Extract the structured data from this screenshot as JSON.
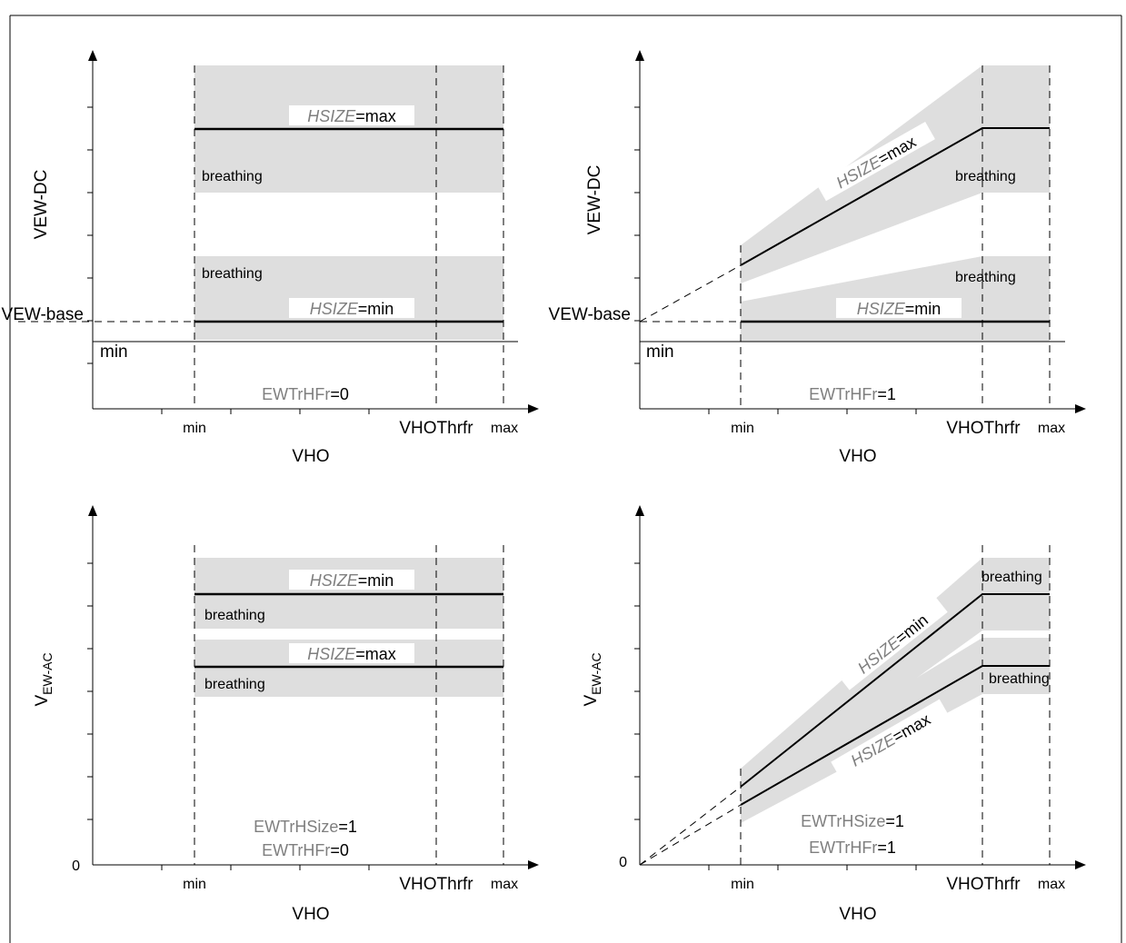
{
  "colors": {
    "band": "#dedede",
    "line": "#000000",
    "gray_text": "#7f7f7f",
    "frame": "#000000"
  },
  "panels": [
    {
      "id": "tl",
      "ylabel": "VEW-DC",
      "ylabel_sub": "",
      "ybase_label": "VEW-base",
      "ymin_label": "min",
      "zero_label": "",
      "x_ticks": {
        "min": "min",
        "thr": "VHOThrfr",
        "max": "max"
      },
      "xlabel": "VHO",
      "params": [
        {
          "name": "EWTrHFr",
          "value": "=0"
        }
      ],
      "curves": [
        {
          "prefix": "HSIZE",
          "suffix": "=max",
          "breathing": "breathing"
        },
        {
          "prefix": "HSIZE",
          "suffix": "=min",
          "breathing": "breathing"
        }
      ]
    },
    {
      "id": "tr",
      "ylabel": "VEW-DC",
      "ylabel_sub": "",
      "ybase_label": "VEW-base",
      "ymin_label": "min",
      "zero_label": "",
      "x_ticks": {
        "min": "min",
        "thr": "VHOThrfr",
        "max": "max"
      },
      "xlabel": "VHO",
      "params": [
        {
          "name": "EWTrHFr",
          "value": "=1"
        }
      ],
      "curves": [
        {
          "prefix": "HSIZE",
          "suffix": "=max",
          "breathing": "breathing"
        },
        {
          "prefix": "HSIZE",
          "suffix": "=min",
          "breathing": "breathing"
        }
      ]
    },
    {
      "id": "bl",
      "ylabel": "V",
      "ylabel_sub": "EW-AC",
      "ybase_label": "",
      "ymin_label": "",
      "zero_label": "0",
      "x_ticks": {
        "min": "min",
        "thr": "VHOThrfr",
        "max": "max"
      },
      "xlabel": "VHO",
      "params": [
        {
          "name": "EWTrHSize",
          "value": "=1"
        },
        {
          "name": "EWTrHFr",
          "value": "=0"
        }
      ],
      "curves": [
        {
          "prefix": "HSIZE",
          "suffix": "=min",
          "breathing": "breathing"
        },
        {
          "prefix": "HSIZE",
          "suffix": "=max",
          "breathing": "breathing"
        }
      ]
    },
    {
      "id": "br",
      "ylabel": "V",
      "ylabel_sub": "EW-AC",
      "ybase_label": "",
      "ymin_label": "",
      "zero_label": "0",
      "x_ticks": {
        "min": "min",
        "thr": "VHOThrfr",
        "max": "max"
      },
      "xlabel": "VHO",
      "params": [
        {
          "name": "EWTrHSize",
          "value": "=1"
        },
        {
          "name": "EWTrHFr",
          "value": "=1"
        }
      ],
      "curves": [
        {
          "prefix": "HSIZE",
          "suffix": "=min",
          "breathing": "breathing"
        },
        {
          "prefix": "HSIZE",
          "suffix": "=max",
          "breathing": "breathing"
        }
      ]
    }
  ]
}
